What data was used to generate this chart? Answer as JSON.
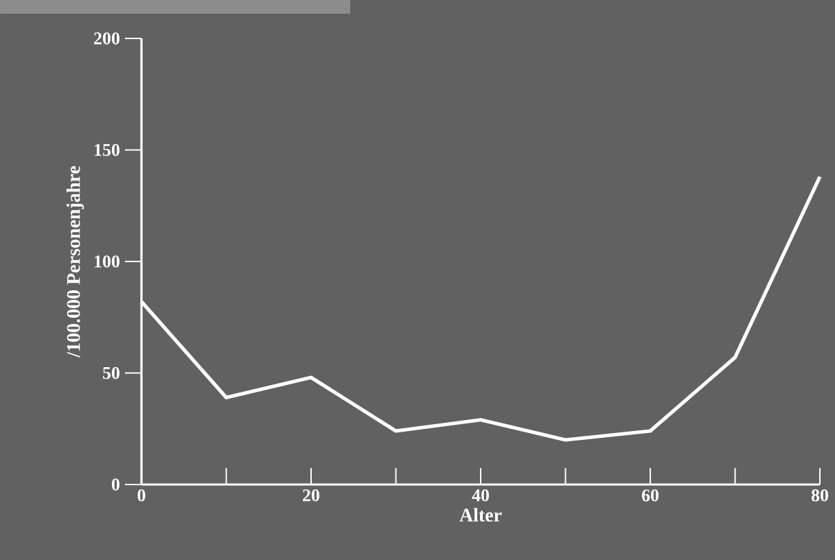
{
  "chart_data": {
    "type": "line",
    "xlabel": "Alter",
    "ylabel": "/100.000 Personenjahre",
    "x": [
      0,
      10,
      20,
      30,
      40,
      50,
      60,
      70,
      80
    ],
    "series": [
      {
        "color": "#ffffff",
        "values": [
          82,
          39,
          48,
          24,
          29,
          20,
          24,
          57,
          138
        ]
      }
    ],
    "xlim": [
      0,
      80
    ],
    "ylim": [
      0,
      200
    ],
    "xticks": [
      0,
      {
        "value": 10,
        "label": null
      },
      20,
      {
        "value": 30,
        "label": null
      },
      40,
      {
        "value": 50,
        "label": null
      },
      60,
      {
        "value": 70,
        "label": null
      },
      80
    ],
    "yticks": [
      0,
      50,
      100,
      150,
      200
    ],
    "grid": false,
    "marker": "none",
    "line_style": "solid"
  }
}
